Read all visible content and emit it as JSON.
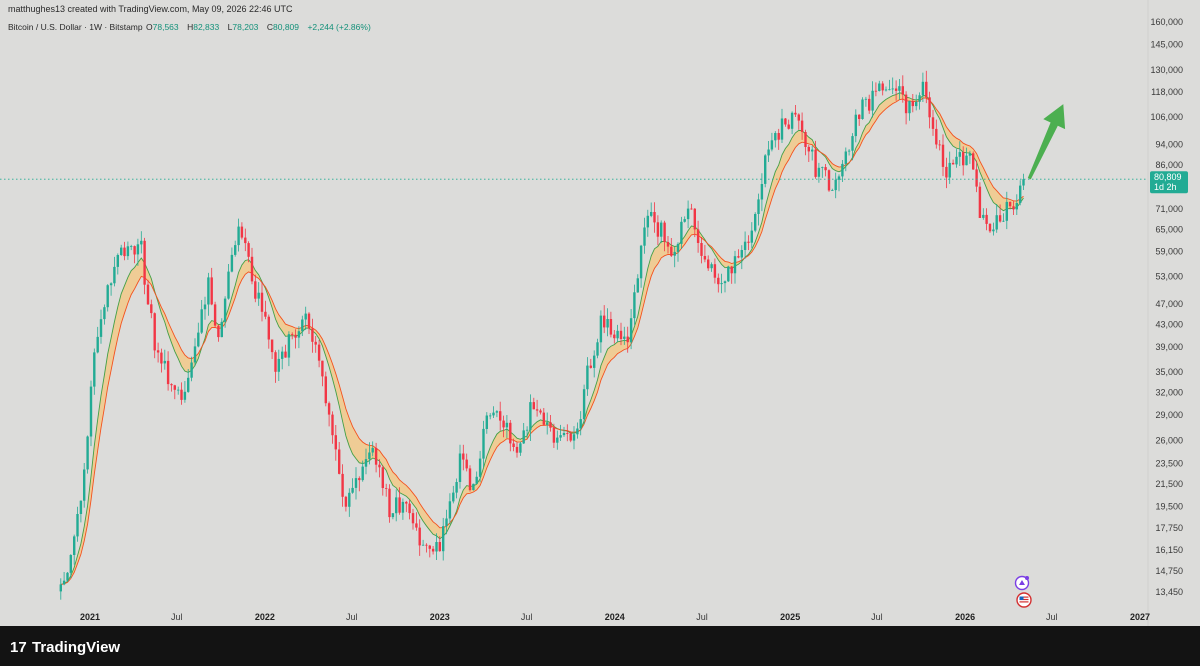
{
  "header": {
    "credit": "matthughes13 created with TradingView.com, May 09, 2026 22:46 UTC",
    "symbol": "Bitcoin / U.S. Dollar · 1W · Bitstamp",
    "open_label": "O",
    "open": "78,563",
    "high_label": "H",
    "high": "82,833",
    "low_label": "L",
    "low": "78,203",
    "close_label": "C",
    "close": "80,809",
    "change": "+2,244 (+2.86%)"
  },
  "price_tag": {
    "value": "80,809",
    "countdown": "1d 2h"
  },
  "brand": {
    "name": "TradingView",
    "logo": "17"
  },
  "colors": {
    "background": "#dcdcda",
    "up": "#22ab94",
    "down": "#f23645",
    "ma_fast": "#43a047",
    "ma_slow": "#f4511e",
    "band": "#f5c77e",
    "arrow": "#4caf50",
    "price_line": "#22ab94"
  },
  "icons": [
    "calendar-event-icon",
    "us-flag-icon"
  ],
  "chart_data": {
    "type": "candlestick",
    "scale": "log",
    "yticks": [
      13450,
      14750,
      16150,
      17750,
      19500,
      21500,
      23500,
      26000,
      29000,
      32000,
      35000,
      39000,
      43000,
      47000,
      53000,
      59000,
      65000,
      71000,
      86000,
      94000,
      106000,
      118000,
      130000,
      145000,
      160000
    ],
    "ytick_labels": [
      "13,450",
      "14,750",
      "16,150",
      "17,750",
      "19,500",
      "21,500",
      "23,500",
      "26,000",
      "29,000",
      "32,000",
      "35,000",
      "39,000",
      "43,000",
      "47,000",
      "53,000",
      "59,000",
      "65,000",
      "71,000",
      "86,000",
      "94,000",
      "106,000",
      "118,000",
      "130,000",
      "145,000",
      "160,000"
    ],
    "xticks": [
      {
        "label": "2021",
        "date": "2021-01-01",
        "year": true
      },
      {
        "label": "Jul",
        "date": "2021-07-01",
        "year": false
      },
      {
        "label": "2022",
        "date": "2022-01-01",
        "year": true
      },
      {
        "label": "Jul",
        "date": "2022-07-01",
        "year": false
      },
      {
        "label": "2023",
        "date": "2023-01-01",
        "year": true
      },
      {
        "label": "Jul",
        "date": "2023-07-01",
        "year": false
      },
      {
        "label": "2024",
        "date": "2024-01-01",
        "year": true
      },
      {
        "label": "Jul",
        "date": "2024-07-01",
        "year": false
      },
      {
        "label": "2025",
        "date": "2025-01-01",
        "year": true
      },
      {
        "label": "Jul",
        "date": "2025-07-01",
        "year": false
      },
      {
        "label": "2026",
        "date": "2026-01-01",
        "year": true
      },
      {
        "label": "Jul",
        "date": "2026-07-01",
        "year": false
      },
      {
        "label": "2027",
        "date": "2027-01-01",
        "year": true
      }
    ],
    "key_prices": [
      {
        "date": "2020-11-01",
        "price": 13450
      },
      {
        "date": "2020-12-15",
        "price": 19500
      },
      {
        "date": "2021-01-10",
        "price": 38000
      },
      {
        "date": "2021-02-20",
        "price": 57000
      },
      {
        "date": "2021-04-15",
        "price": 62000
      },
      {
        "date": "2021-05-20",
        "price": 37000
      },
      {
        "date": "2021-07-20",
        "price": 31000
      },
      {
        "date": "2021-09-05",
        "price": 51000
      },
      {
        "date": "2021-09-25",
        "price": 42000
      },
      {
        "date": "2021-11-10",
        "price": 66000
      },
      {
        "date": "2021-12-20",
        "price": 47000
      },
      {
        "date": "2022-01-24",
        "price": 36000
      },
      {
        "date": "2022-03-28",
        "price": 46000
      },
      {
        "date": "2022-05-15",
        "price": 29500
      },
      {
        "date": "2022-06-18",
        "price": 19500
      },
      {
        "date": "2022-08-14",
        "price": 24500
      },
      {
        "date": "2022-09-20",
        "price": 19000
      },
      {
        "date": "2022-10-25",
        "price": 20500
      },
      {
        "date": "2022-11-20",
        "price": 16000
      },
      {
        "date": "2023-01-01",
        "price": 16600
      },
      {
        "date": "2023-02-15",
        "price": 24500
      },
      {
        "date": "2023-03-10",
        "price": 20500
      },
      {
        "date": "2023-04-15",
        "price": 30000
      },
      {
        "date": "2023-06-15",
        "price": 25500
      },
      {
        "date": "2023-07-15",
        "price": 30500
      },
      {
        "date": "2023-09-05",
        "price": 25800
      },
      {
        "date": "2023-10-15",
        "price": 27500
      },
      {
        "date": "2023-11-05",
        "price": 35000
      },
      {
        "date": "2023-12-05",
        "price": 43500
      },
      {
        "date": "2024-01-25",
        "price": 40000
      },
      {
        "date": "2024-03-10",
        "price": 70000
      },
      {
        "date": "2024-05-01",
        "price": 60000
      },
      {
        "date": "2024-06-05",
        "price": 70500
      },
      {
        "date": "2024-07-05",
        "price": 55000
      },
      {
        "date": "2024-08-05",
        "price": 53000
      },
      {
        "date": "2024-09-10",
        "price": 55500
      },
      {
        "date": "2024-10-15",
        "price": 67000
      },
      {
        "date": "2024-11-15",
        "price": 90000
      },
      {
        "date": "2024-12-15",
        "price": 103000
      },
      {
        "date": "2025-01-20",
        "price": 104000
      },
      {
        "date": "2025-02-25",
        "price": 84000
      },
      {
        "date": "2025-04-08",
        "price": 77000
      },
      {
        "date": "2025-05-20",
        "price": 108000
      },
      {
        "date": "2025-07-14",
        "price": 120000
      },
      {
        "date": "2025-08-15",
        "price": 117000
      },
      {
        "date": "2025-09-01",
        "price": 109000
      },
      {
        "date": "2025-10-06",
        "price": 123000
      },
      {
        "date": "2025-10-20",
        "price": 108000
      },
      {
        "date": "2025-11-20",
        "price": 83000
      },
      {
        "date": "2025-12-15",
        "price": 88000
      },
      {
        "date": "2026-01-15",
        "price": 92000
      },
      {
        "date": "2026-02-05",
        "price": 66000
      },
      {
        "date": "2026-03-01",
        "price": 68000
      },
      {
        "date": "2026-03-20",
        "price": 70000
      },
      {
        "date": "2026-04-10",
        "price": 73000
      },
      {
        "date": "2026-05-04",
        "price": 80809
      }
    ],
    "overlays": [
      {
        "type": "moving-average",
        "role": "fast",
        "color": "#43a047"
      },
      {
        "type": "moving-average",
        "role": "slow",
        "color": "#f4511e"
      }
    ],
    "annotation": {
      "type": "arrow",
      "direction": "up",
      "from": {
        "date": "2026-05-15",
        "price": 81000
      },
      "to": {
        "date": "2026-07-25",
        "price": 112000
      }
    },
    "last_price": 80809,
    "grid": false,
    "legend": "none"
  }
}
